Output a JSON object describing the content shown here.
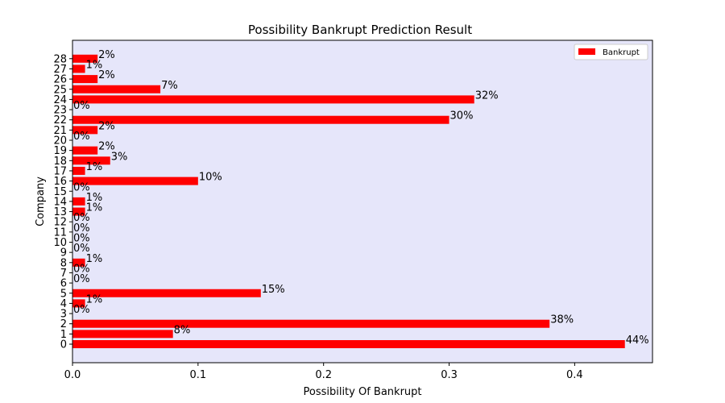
{
  "chart_data": {
    "type": "bar",
    "orientation": "horizontal",
    "title": "Possibility Bankrupt Prediction Result",
    "xlabel": "Possibility Of Bankrupt",
    "ylabel": "Company",
    "xlim": [
      0,
      0.462
    ],
    "xticks": [
      "0.0",
      "0.1",
      "0.2",
      "0.3",
      "0.4"
    ],
    "categories": [
      "0",
      "1",
      "2",
      "3",
      "4",
      "5",
      "6",
      "7",
      "8",
      "9",
      "10",
      "11",
      "12",
      "13",
      "14",
      "15",
      "16",
      "17",
      "18",
      "19",
      "20",
      "21",
      "22",
      "23",
      "24",
      "25",
      "26",
      "27",
      "28"
    ],
    "series": [
      {
        "name": "Bankrupt",
        "color": "#ff0000",
        "values": [
          0.44,
          0.08,
          0.38,
          0.0,
          0.01,
          0.15,
          0.0,
          0.0,
          0.01,
          0.0,
          0.0,
          0.0,
          0.0,
          0.01,
          0.01,
          0.0,
          0.1,
          0.01,
          0.03,
          0.02,
          0.0,
          0.02,
          0.3,
          0.0,
          0.32,
          0.07,
          0.02,
          0.01,
          0.02
        ],
        "labels": [
          "44%",
          "8%",
          "38%",
          "0%",
          "1%",
          "15%",
          "0%",
          "0%",
          "1%",
          "0%",
          "0%",
          "0%",
          "0%",
          "1%",
          "1%",
          "0%",
          "10%",
          "1%",
          "3%",
          "2%",
          "0%",
          "2%",
          "30%",
          "0%",
          "32%",
          "7%",
          "2%",
          "1%",
          "2%"
        ]
      }
    ],
    "plot_background": "#e6e6fa",
    "legend_position": "top-right",
    "grid": false
  }
}
